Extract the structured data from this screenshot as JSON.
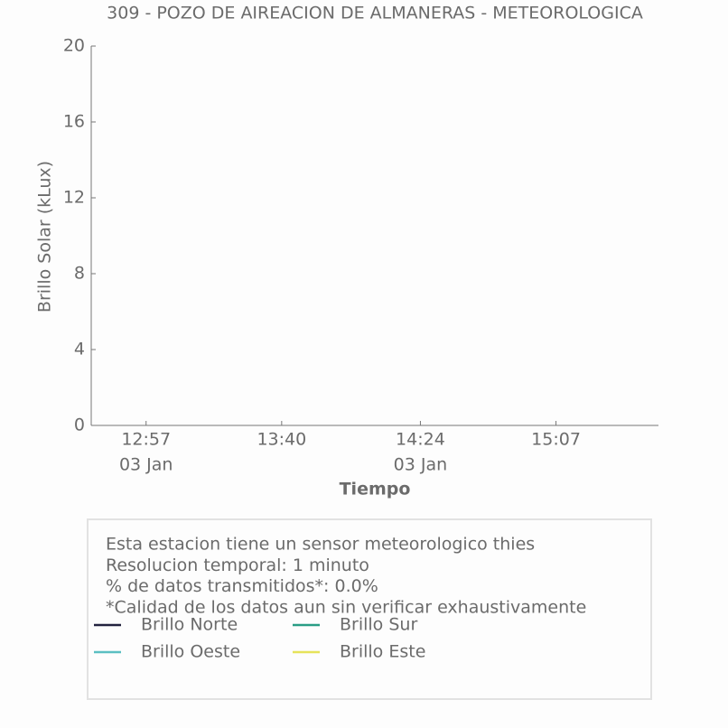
{
  "chart_data": {
    "type": "line",
    "title": "309 - POZO DE AIREACION DE ALMANERAS - METEOROLOGICA",
    "x_label": "Tiempo",
    "y_label": "Brillo Solar (kLux)",
    "x": [],
    "series": [
      {
        "name": "Brillo Norte",
        "color": "#23233f",
        "values": []
      },
      {
        "name": "Brillo Sur",
        "color": "#2a9d85",
        "values": []
      },
      {
        "name": "Brillo Oeste",
        "color": "#5bbfc2",
        "values": []
      },
      {
        "name": "Brillo Este",
        "color": "#e6e35a",
        "values": []
      }
    ],
    "xlim": [
      759.6,
      939.5
    ],
    "xticks": [
      {
        "value": 777,
        "label": "12:57",
        "sublabel": "03 Jan"
      },
      {
        "value": 820,
        "label": "13:40"
      },
      {
        "value": 864,
        "label": "14:24",
        "sublabel": "03 Jan"
      },
      {
        "value": 907,
        "label": "15:07"
      }
    ],
    "ylim": [
      0,
      20
    ],
    "yticks": [
      0,
      4,
      8,
      12,
      16,
      20
    ],
    "grid": false,
    "info": [
      "Esta estacion tiene un sensor meteorologico thies",
      "Resolucion temporal: 1 minuto",
      "% de datos transmitidos*: 0.0%",
      "*Calidad de los datos aun sin verificar exhaustivamente"
    ]
  }
}
